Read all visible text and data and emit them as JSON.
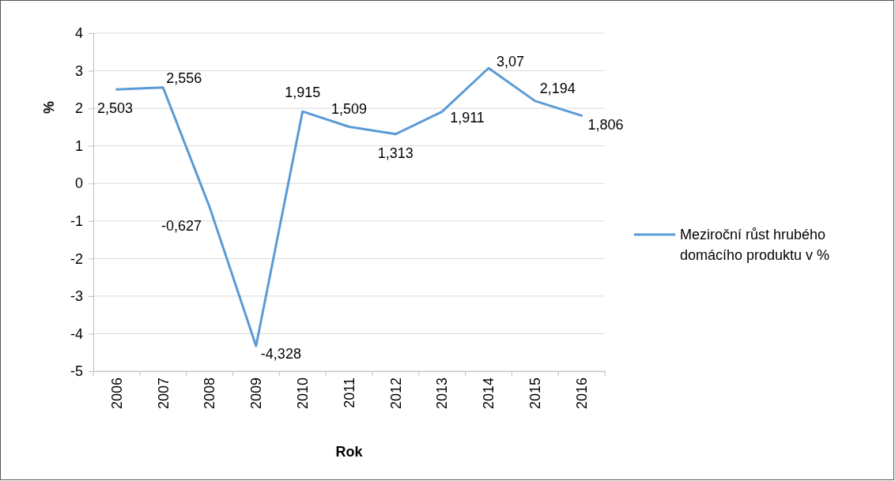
{
  "chart_data": {
    "type": "line",
    "xlabel": "Rok",
    "ylabel": "%",
    "categories": [
      "2006",
      "2007",
      "2008",
      "2009",
      "2010",
      "2011",
      "2012",
      "2013",
      "2014",
      "2015",
      "2016"
    ],
    "series": [
      {
        "name": "Meziroční růst hrubého domácího produktu v %",
        "color": "#5b9bd5",
        "values": [
          2.503,
          2.556,
          -0.627,
          -4.328,
          1.915,
          1.509,
          1.313,
          1.911,
          3.07,
          2.194,
          1.806
        ],
        "value_labels": [
          "2,503",
          "2,556",
          "-0,627",
          "-4,328",
          "1,915",
          "1,509",
          "1,313",
          "1,911",
          "3,07",
          "2,194",
          "1,806"
        ]
      }
    ],
    "ylim": [
      -5,
      4
    ],
    "yticks": [
      -5,
      -4,
      -3,
      -2,
      -1,
      0,
      1,
      2,
      3,
      4
    ],
    "grid": "y",
    "legend": "right",
    "marker": "none",
    "line_style": "solid"
  }
}
